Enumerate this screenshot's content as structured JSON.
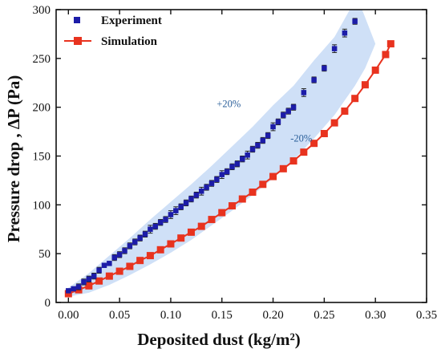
{
  "chart_data": {
    "type": "scatter",
    "xlabel": "Deposited dust (kg/m²)",
    "ylabel": "Pressure drop , ΔP (Pa)",
    "xlim": [
      -0.012,
      0.35
    ],
    "ylim": [
      0,
      300
    ],
    "x_ticks": [
      "0.00",
      "0.05",
      "0.10",
      "0.15",
      "0.20",
      "0.25",
      "0.30",
      "0.35"
    ],
    "y_ticks": [
      "0",
      "50",
      "100",
      "150",
      "200",
      "250",
      "300"
    ],
    "grid": false,
    "legend_position": "top-left",
    "series": [
      {
        "name": "Experiment",
        "marker": "square",
        "color": "#1c1ca8",
        "error_bars": true,
        "points": [
          [
            0.0,
            12,
            2
          ],
          [
            0.005,
            14,
            2
          ],
          [
            0.01,
            16,
            3
          ],
          [
            0.015,
            21,
            3
          ],
          [
            0.02,
            24,
            3
          ],
          [
            0.025,
            27,
            3
          ],
          [
            0.03,
            33,
            3
          ],
          [
            0.035,
            38,
            2
          ],
          [
            0.04,
            40,
            2
          ],
          [
            0.045,
            46,
            3
          ],
          [
            0.05,
            49,
            3
          ],
          [
            0.055,
            53,
            3
          ],
          [
            0.06,
            58,
            3
          ],
          [
            0.065,
            62,
            3
          ],
          [
            0.07,
            66,
            3
          ],
          [
            0.075,
            70,
            3
          ],
          [
            0.08,
            75,
            4
          ],
          [
            0.085,
            78,
            3
          ],
          [
            0.09,
            82,
            3
          ],
          [
            0.095,
            85,
            3
          ],
          [
            0.1,
            90,
            4
          ],
          [
            0.105,
            94,
            4
          ],
          [
            0.11,
            98,
            3
          ],
          [
            0.115,
            102,
            3
          ],
          [
            0.12,
            106,
            3
          ],
          [
            0.125,
            110,
            3
          ],
          [
            0.13,
            114,
            4
          ],
          [
            0.135,
            118,
            3
          ],
          [
            0.14,
            122,
            3
          ],
          [
            0.145,
            126,
            3
          ],
          [
            0.15,
            131,
            4
          ],
          [
            0.155,
            134,
            3
          ],
          [
            0.16,
            139,
            3
          ],
          [
            0.165,
            142,
            3
          ],
          [
            0.17,
            147,
            3
          ],
          [
            0.175,
            151,
            4
          ],
          [
            0.18,
            157,
            3
          ],
          [
            0.185,
            161,
            3
          ],
          [
            0.19,
            166,
            3
          ],
          [
            0.195,
            171,
            3
          ],
          [
            0.2,
            180,
            4
          ],
          [
            0.205,
            185,
            3
          ],
          [
            0.21,
            192,
            3
          ],
          [
            0.215,
            196,
            3
          ],
          [
            0.22,
            200,
            3
          ],
          [
            0.23,
            215,
            4
          ],
          [
            0.24,
            228,
            3
          ],
          [
            0.25,
            240,
            3
          ],
          [
            0.26,
            260,
            4
          ],
          [
            0.27,
            276,
            4
          ],
          [
            0.28,
            288,
            3
          ]
        ]
      },
      {
        "name": "Simulation",
        "marker": "square",
        "color": "#e8331f",
        "connected": true,
        "points": [
          [
            0.0,
            9
          ],
          [
            0.01,
            13
          ],
          [
            0.02,
            17
          ],
          [
            0.03,
            22
          ],
          [
            0.04,
            27
          ],
          [
            0.05,
            32
          ],
          [
            0.06,
            37
          ],
          [
            0.07,
            43
          ],
          [
            0.08,
            48
          ],
          [
            0.09,
            54
          ],
          [
            0.1,
            60
          ],
          [
            0.11,
            66
          ],
          [
            0.12,
            72
          ],
          [
            0.13,
            78
          ],
          [
            0.14,
            85
          ],
          [
            0.15,
            92
          ],
          [
            0.16,
            99
          ],
          [
            0.17,
            106
          ],
          [
            0.18,
            113
          ],
          [
            0.19,
            121
          ],
          [
            0.2,
            129
          ],
          [
            0.21,
            137
          ],
          [
            0.22,
            145
          ],
          [
            0.23,
            154
          ],
          [
            0.24,
            163
          ],
          [
            0.25,
            173
          ],
          [
            0.26,
            184
          ],
          [
            0.27,
            196
          ],
          [
            0.28,
            209
          ],
          [
            0.29,
            223
          ],
          [
            0.3,
            238
          ],
          [
            0.31,
            254
          ],
          [
            0.315,
            265
          ]
        ]
      }
    ],
    "band": {
      "color": "#cfe0f7",
      "upper": [
        [
          0.0,
          15
        ],
        [
          0.02,
          30
        ],
        [
          0.04,
          48
        ],
        [
          0.06,
          66
        ],
        [
          0.08,
          85
        ],
        [
          0.1,
          103
        ],
        [
          0.12,
          121
        ],
        [
          0.14,
          140
        ],
        [
          0.16,
          160
        ],
        [
          0.18,
          180
        ],
        [
          0.2,
          202
        ],
        [
          0.22,
          222
        ],
        [
          0.24,
          248
        ],
        [
          0.26,
          272
        ],
        [
          0.275,
          300
        ],
        [
          0.287,
          300
        ]
      ],
      "lower": [
        [
          0.3,
          265
        ],
        [
          0.29,
          240
        ],
        [
          0.28,
          222
        ],
        [
          0.27,
          207
        ],
        [
          0.26,
          192
        ],
        [
          0.25,
          180
        ],
        [
          0.24,
          168
        ],
        [
          0.22,
          146
        ],
        [
          0.2,
          127
        ],
        [
          0.18,
          110
        ],
        [
          0.16,
          94
        ],
        [
          0.14,
          79
        ],
        [
          0.12,
          64
        ],
        [
          0.1,
          51
        ],
        [
          0.08,
          39
        ],
        [
          0.06,
          28
        ],
        [
          0.04,
          18
        ],
        [
          0.02,
          10
        ],
        [
          0.0,
          6
        ]
      ]
    },
    "annotations": [
      {
        "text": "+20%",
        "x": 0.145,
        "y": 200,
        "color": "#2b5f9a"
      },
      {
        "text": "-20%",
        "x": 0.217,
        "y": 165,
        "color": "#2b5f9a"
      }
    ]
  }
}
